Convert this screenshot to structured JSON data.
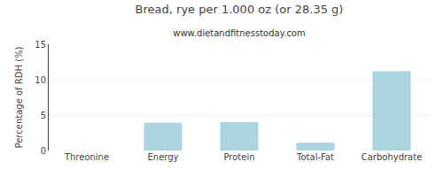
{
  "chart_data": {
    "type": "bar",
    "title": "Bread, rye per 1.000 oz (or 28.35 g)",
    "subtitle": "www.dietandfitnesstoday.com",
    "categories": [
      "Threonine",
      "Energy",
      "Protein",
      "Total-Fat",
      "Carbohydrate"
    ],
    "values": [
      0.0,
      3.9,
      4.0,
      1.1,
      11.2
    ],
    "color": "#aad4e0",
    "ylim": [
      0,
      15
    ],
    "yticks": [
      0,
      5,
      10,
      15
    ],
    "ylabel": "Percentage of RDH (%)",
    "grid": true
  }
}
